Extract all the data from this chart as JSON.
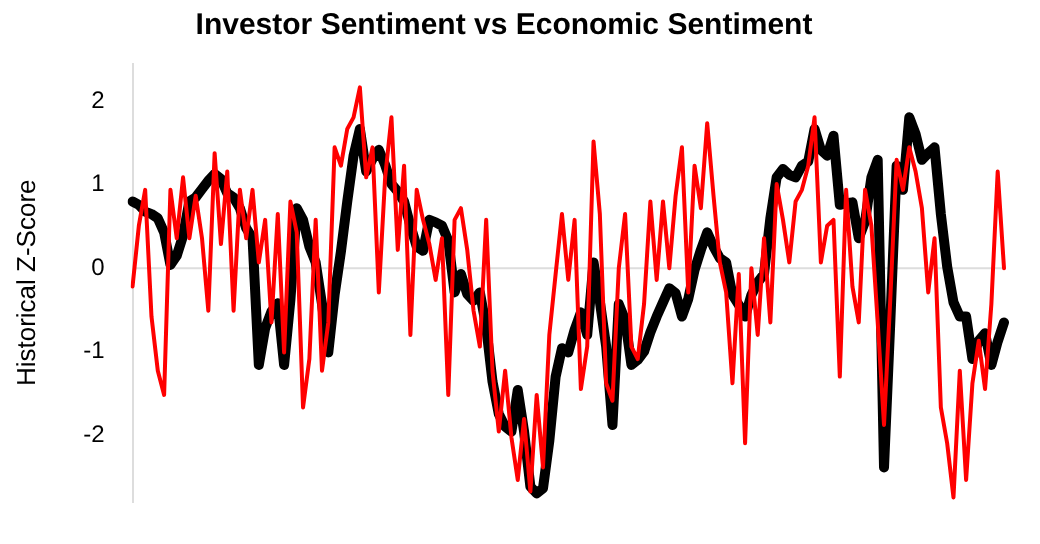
{
  "chart_data": {
    "type": "line",
    "title": "Investor Sentiment vs Economic Sentiment",
    "ylabel": "Historical Z-Score",
    "ylim": [
      -2.8,
      2.45
    ],
    "yticks": [
      -2,
      -1,
      0,
      1,
      2
    ],
    "tick_labels": "y",
    "grid": false,
    "legend": false,
    "marker": "none",
    "line_style": "solid",
    "categories": [
      null,
      null,
      null,
      null,
      null,
      null,
      null,
      null,
      null,
      null,
      null,
      null,
      null,
      null,
      null,
      null,
      null,
      null,
      null,
      null,
      null,
      null,
      null,
      null,
      null,
      null,
      null,
      null,
      null,
      null,
      null,
      null,
      null,
      null,
      null,
      null,
      null,
      null,
      null,
      null,
      null,
      null,
      null,
      null,
      null,
      null,
      null,
      null,
      null,
      null,
      null,
      null,
      null,
      null,
      null,
      null,
      null,
      null,
      null,
      null,
      null,
      null,
      null,
      null,
      null,
      null,
      null,
      null,
      null,
      null,
      null,
      null,
      null,
      null,
      null,
      null,
      null,
      null,
      null,
      null,
      null,
      null,
      null,
      null,
      null,
      null,
      null,
      null,
      null,
      null,
      null,
      null,
      null,
      null,
      null,
      null,
      null,
      null,
      null,
      null,
      null,
      null,
      null,
      null,
      null,
      null,
      null,
      null,
      null,
      null,
      null,
      null,
      null,
      null,
      null,
      null,
      null,
      null,
      null,
      null,
      null,
      null,
      null,
      null,
      null,
      null,
      null,
      null,
      null,
      null,
      null,
      null,
      null,
      null,
      null,
      null,
      null,
      null,
      null
    ],
    "ref_lines": [
      {
        "axis": "y",
        "value": 0,
        "color": "#dddddd"
      }
    ],
    "series": [
      {
        "color": "#000000",
        "values": [
          0.8,
          0.76,
          0.68,
          0.65,
          0.6,
          0.43,
          0.04,
          0.15,
          0.39,
          0.8,
          0.85,
          0.95,
          1.05,
          1.13,
          1.07,
          0.9,
          0.85,
          0.72,
          0.48,
          0.36,
          -1.16,
          -0.72,
          -0.52,
          -0.42,
          -1.16,
          -0.38,
          0.72,
          0.58,
          0.26,
          0.07,
          -0.43,
          -1.01,
          -0.32,
          0.2,
          0.8,
          1.35,
          1.67,
          1.16,
          1.31,
          1.42,
          1.24,
          1.01,
          0.92,
          0.8,
          0.51,
          0.26,
          0.21,
          0.58,
          0.55,
          0.51,
          0.33,
          -0.29,
          -0.07,
          -0.31,
          -0.39,
          -0.29,
          -0.7,
          -1.36,
          -1.75,
          -1.9,
          -1.96,
          -1.46,
          -1.96,
          -2.62,
          -2.7,
          -2.64,
          -2.07,
          -1.3,
          -0.96,
          -1.01,
          -0.74,
          -0.53,
          -0.8,
          0.07,
          -0.4,
          -0.94,
          -1.88,
          -0.43,
          -0.62,
          -1.16,
          -1.1,
          -1.0,
          -0.77,
          -0.58,
          -0.41,
          -0.24,
          -0.3,
          -0.58,
          -0.37,
          -0.02,
          0.22,
          0.43,
          0.26,
          0.12,
          0.07,
          -0.32,
          -0.44,
          -0.58,
          -0.32,
          -0.17,
          -0.07,
          0.6,
          1.09,
          1.19,
          1.12,
          1.09,
          1.23,
          1.28,
          1.67,
          1.42,
          1.35,
          1.59,
          0.76,
          0.78,
          0.79,
          0.36,
          0.56,
          1.09,
          1.3,
          -2.39,
          -0.64,
          1.23,
          0.94,
          1.81,
          1.61,
          1.3,
          1.38,
          1.45,
          0.65,
          0.02,
          -0.41,
          -0.58,
          -0.58,
          -1.09,
          -0.87,
          -0.78,
          -1.16,
          -0.88,
          -0.65
        ]
      },
      {
        "color": "#ff0000",
        "values": [
          -0.22,
          0.51,
          0.94,
          -0.58,
          -1.23,
          -1.52,
          0.94,
          0.36,
          1.09,
          0.36,
          0.87,
          0.36,
          -0.51,
          1.38,
          0.29,
          1.16,
          -0.51,
          0.94,
          0.36,
          0.94,
          0.07,
          0.58,
          -0.65,
          0.65,
          -1.01,
          0.8,
          0.43,
          -1.67,
          -1.09,
          0.58,
          -1.23,
          -0.65,
          1.45,
          1.23,
          1.67,
          1.81,
          2.17,
          1.09,
          1.45,
          -0.29,
          1.09,
          1.81,
          0.22,
          1.23,
          -0.8,
          0.94,
          0.58,
          0.29,
          -0.14,
          0.36,
          -1.52,
          0.58,
          0.72,
          0.22,
          -0.51,
          -0.94,
          0.58,
          -1.23,
          -1.96,
          -1.23,
          -2.03,
          -2.54,
          -1.81,
          -2.68,
          -1.52,
          -2.39,
          -0.8,
          -0.07,
          0.65,
          -0.14,
          0.58,
          -1.45,
          -0.94,
          1.52,
          0.65,
          -1.38,
          -1.59,
          0,
          0.65,
          -0.94,
          -1.09,
          -0.43,
          0.8,
          -0.14,
          0.8,
          0,
          0.87,
          1.45,
          -0.29,
          1.23,
          0.72,
          1.74,
          0.87,
          0.07,
          -0.29,
          -1.38,
          -0.07,
          -2.1,
          0,
          -0.8,
          0.36,
          -0.65,
          1.01,
          0.58,
          0.07,
          0.8,
          0.94,
          1.23,
          1.81,
          0.07,
          0.51,
          0.58,
          -1.3,
          0.94,
          -0.22,
          -0.65,
          0.94,
          0.51,
          -0.65,
          -1.88,
          -0.36,
          1.3,
          0.94,
          1.45,
          1.16,
          0.72,
          -0.29,
          0.36,
          -1.67,
          -2.1,
          -2.75,
          -1.23,
          -2.54,
          -1.38,
          -0.87,
          -1.45,
          -0.43,
          1.16,
          0
        ]
      }
    ]
  }
}
